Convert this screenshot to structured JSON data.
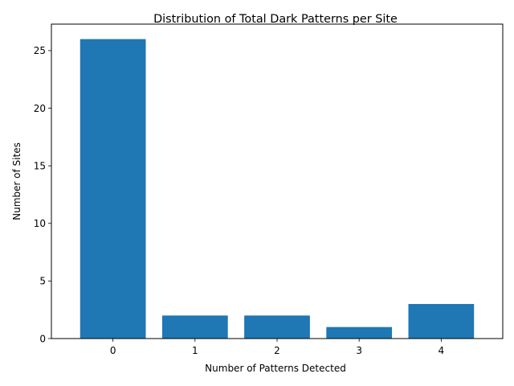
{
  "chart_data": {
    "type": "bar",
    "title": "Distribution of Total Dark Patterns per Site",
    "xlabel": "Number of Patterns Detected",
    "ylabel": "Number of Sites",
    "categories": [
      "0",
      "1",
      "2",
      "3",
      "4"
    ],
    "values": [
      26,
      2,
      2,
      1,
      3
    ],
    "ylim": [
      0,
      27.3
    ],
    "yticks": [
      0,
      5,
      10,
      15,
      20,
      25
    ],
    "grid": false,
    "bar_color": "#1f77b4"
  }
}
